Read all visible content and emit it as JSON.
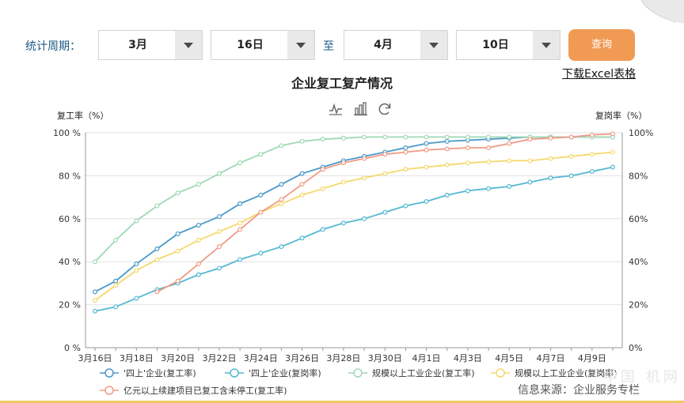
{
  "filters": {
    "period_label": "统计周期：",
    "start_month": "3月",
    "start_day": "16日",
    "to_label": "至",
    "end_month": "4月",
    "end_day": "10日",
    "query_button": "查询"
  },
  "export_link": "下载Excel表格",
  "source_note": "信息来源：企业服务专栏",
  "watermark": "中国 机网",
  "toolbar_icons": [
    "line-chart-icon",
    "bar-chart-icon",
    "refresh-icon"
  ],
  "colors": {
    "accent_button": "#f19a54",
    "filter_label": "#1e5b86"
  },
  "chart_data": {
    "type": "line",
    "title": "企业复工复产情况",
    "ylabel_left": "复工率（%）",
    "ylabel_right": "复岗率（%）",
    "ylim": [
      0,
      100
    ],
    "y_ticks_left": [
      "0 %",
      "20 %",
      "40 %",
      "60 %",
      "80 %",
      "100 %"
    ],
    "y_ticks_right": [
      "0%",
      "20%",
      "40%",
      "60%",
      "80%",
      "100%"
    ],
    "x_tick_labels": [
      "3月16日",
      "3月18日",
      "3月20日",
      "3月22日",
      "3月24日",
      "3月26日",
      "3月28日",
      "3月30日",
      "4月1日",
      "4月3日",
      "4月5日",
      "4月7日",
      "4月9日"
    ],
    "x": [
      "3月16日",
      "3月17日",
      "3月18日",
      "3月19日",
      "3月20日",
      "3月21日",
      "3月22日",
      "3月23日",
      "3月24日",
      "3月25日",
      "3月26日",
      "3月27日",
      "3月28日",
      "3月29日",
      "3月30日",
      "3月31日",
      "4月1日",
      "4月2日",
      "4月3日",
      "4月4日",
      "4月5日",
      "4月6日",
      "4月7日",
      "4月8日",
      "4月9日",
      "4月10日"
    ],
    "grid": true,
    "legend_position": "bottom",
    "series": [
      {
        "name": "'四上'企业(复工率)",
        "color": "#4a98c9",
        "values": [
          26,
          31,
          39,
          46,
          53,
          57,
          61,
          67,
          71,
          76,
          81,
          84,
          87,
          89,
          91,
          93,
          95,
          96,
          96.5,
          97,
          97.5,
          98,
          98,
          98,
          98,
          98
        ]
      },
      {
        "name": "'四上'企业(复岗率)",
        "color": "#52b8d2",
        "values": [
          17,
          19,
          23,
          27,
          30,
          34,
          37,
          41,
          44,
          47,
          51,
          55,
          58,
          60,
          63,
          66,
          68,
          71,
          73,
          74,
          75,
          77,
          79,
          80,
          82,
          84
        ]
      },
      {
        "name": "规模以上工业企业(复工率)",
        "color": "#9ed9b4",
        "values": [
          40,
          50,
          59,
          66,
          72,
          76,
          81,
          86,
          90,
          94,
          96,
          97,
          97.5,
          98,
          98,
          98,
          98,
          98,
          98,
          98,
          98,
          98,
          98,
          98,
          98,
          98
        ]
      },
      {
        "name": "规模以上工业企业(复岗率)",
        "color": "#f5d86a",
        "values": [
          22,
          29,
          36,
          41,
          45,
          50,
          54,
          58,
          63,
          67,
          71,
          74,
          77,
          79,
          81,
          83,
          84,
          85,
          86,
          86.5,
          87,
          87,
          88,
          89,
          90,
          91
        ]
      },
      {
        "name": "亿元以上续建项目已复工含未停工(复工率)",
        "color": "#ef9b86",
        "values": [
          null,
          null,
          null,
          26,
          31,
          39,
          47,
          55,
          63,
          69,
          76,
          83,
          86,
          88,
          90,
          91,
          92,
          92.5,
          93,
          93,
          95,
          97,
          97.5,
          98,
          99,
          99.5
        ]
      }
    ]
  }
}
